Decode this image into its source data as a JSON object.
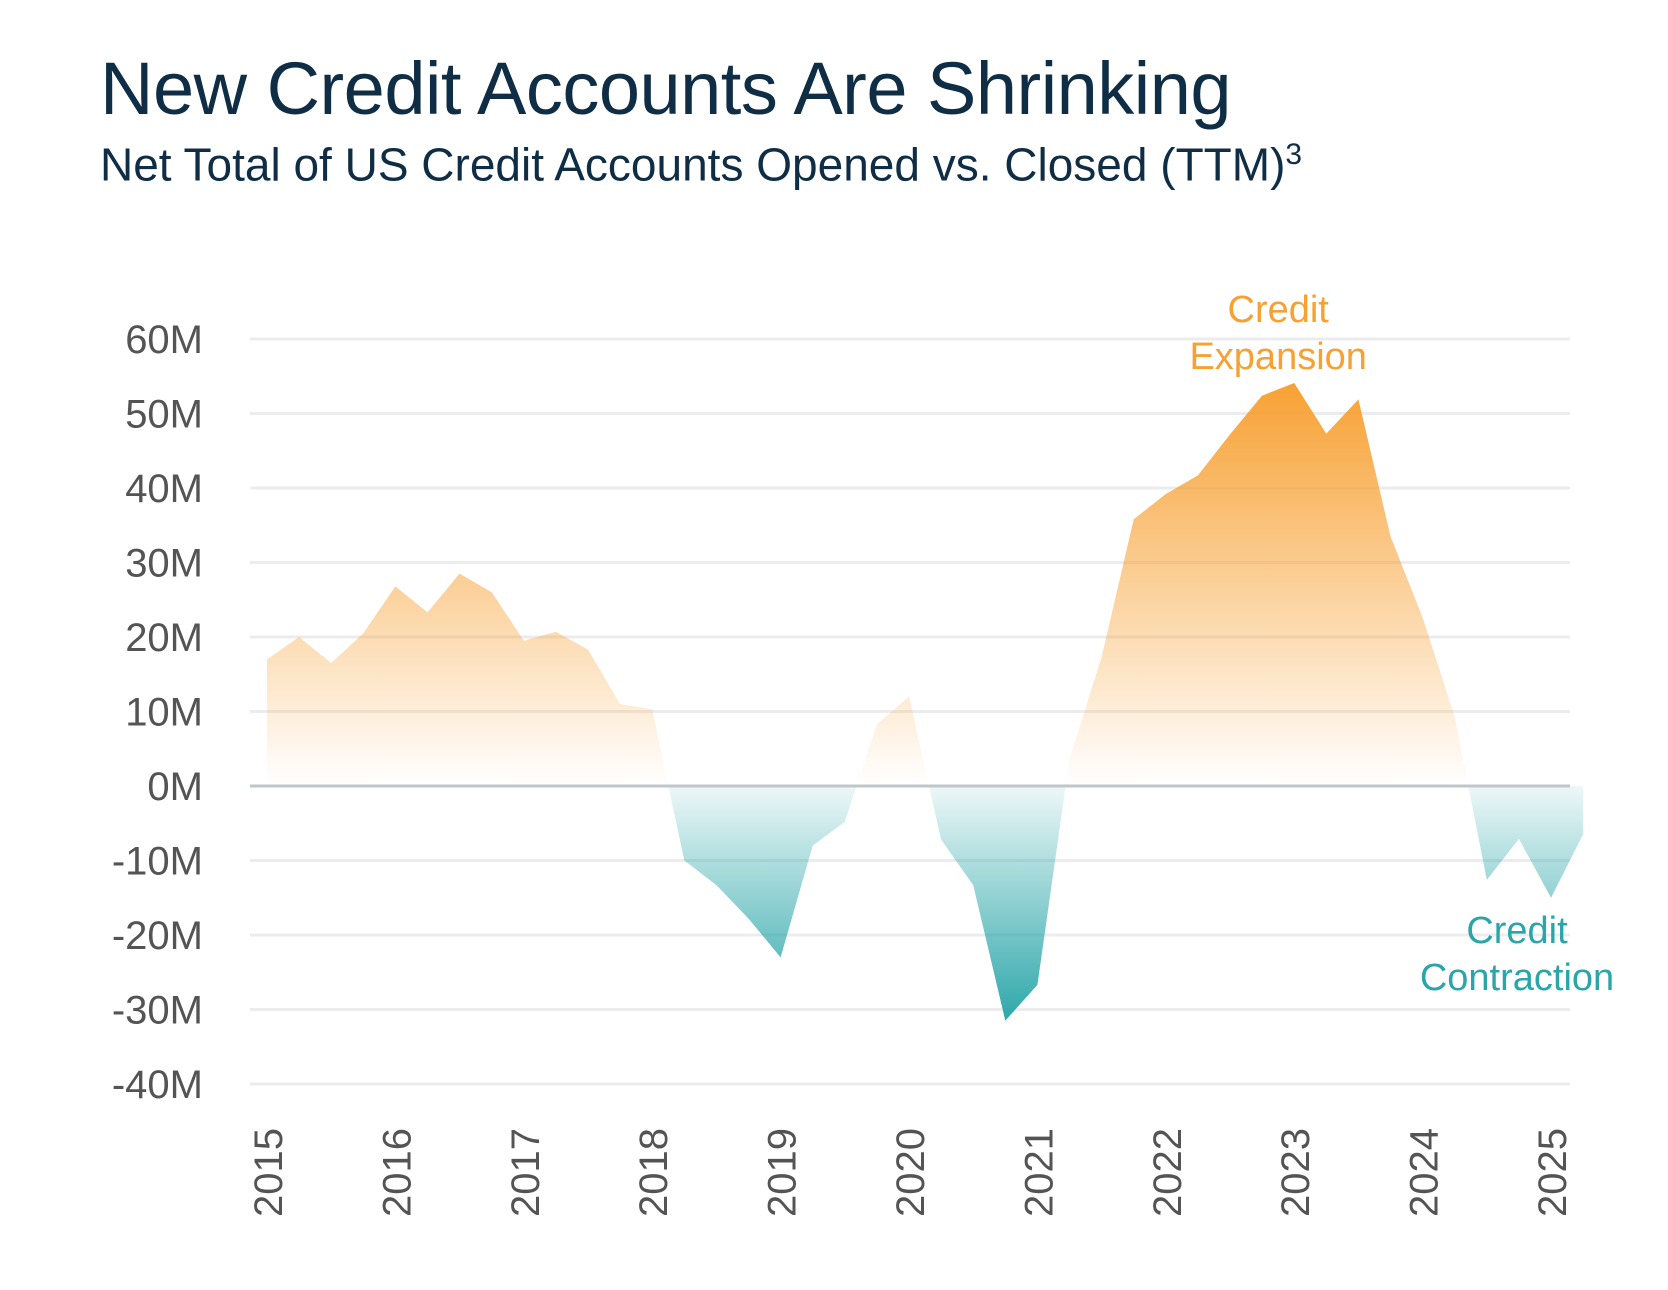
{
  "header": {
    "title": "New Credit Accounts Are Shrinking",
    "subtitle": "Net Total of US Credit Accounts Opened vs. Closed (TTM)",
    "footnote": "3"
  },
  "colors": {
    "positive": "#f7a133",
    "negative": "#2aa6a9",
    "grid": "#ececec",
    "zero_line": "#bfc7cb"
  },
  "chart_data": {
    "type": "area",
    "title": "New Credit Accounts Are Shrinking",
    "subtitle": "Net Total of US Credit Accounts Opened vs. Closed (TTM)",
    "xlabel": "",
    "ylabel": "",
    "ylim": [
      -40,
      60
    ],
    "xlim": [
      2015,
      2025.25
    ],
    "yticks": [
      60,
      50,
      40,
      30,
      20,
      10,
      0,
      -10,
      -20,
      -30,
      -40
    ],
    "ytick_labels": [
      "60M",
      "50M",
      "40M",
      "30M",
      "20M",
      "10M",
      "0M",
      "-10M",
      "-20M",
      "-30M",
      "-40M"
    ],
    "xticks": [
      "2015",
      "2016",
      "2017",
      "2018",
      "2019",
      "2020",
      "2021",
      "2022",
      "2023",
      "2024",
      "2025"
    ],
    "grid": true,
    "units": "millions of accounts",
    "series": [
      {
        "name": "Net accounts opened vs. closed (TTM)",
        "x": [
          2015.0,
          2015.25,
          2015.5,
          2015.75,
          2016.0,
          2016.25,
          2016.5,
          2016.75,
          2017.0,
          2017.25,
          2017.5,
          2017.75,
          2018.0,
          2018.25,
          2018.5,
          2018.75,
          2019.0,
          2019.25,
          2019.5,
          2019.75,
          2020.0,
          2020.25,
          2020.5,
          2020.75,
          2021.0,
          2021.25,
          2021.5,
          2021.75,
          2022.0,
          2022.25,
          2022.5,
          2022.75,
          2023.0,
          2023.25,
          2023.5,
          2023.75,
          2024.0,
          2024.25,
          2024.5,
          2024.75,
          2025.0,
          2025.25
        ],
        "values": [
          17,
          20,
          16.5,
          20.5,
          26.8,
          23.3,
          28.5,
          26,
          19.5,
          20.7,
          18.3,
          11,
          10.3,
          -10,
          -13.3,
          -17.8,
          -23,
          -8,
          -4.8,
          8.3,
          12,
          -7.2,
          -13.3,
          -31.5,
          -26.7,
          3.6,
          17.3,
          35.8,
          39.2,
          41.7,
          47.2,
          52.4,
          54.1,
          47.3,
          51.9,
          33.5,
          22.6,
          9.3,
          -12.6,
          -7.1,
          -15,
          -6.5
        ]
      }
    ],
    "annotations": [
      {
        "text": "Credit\nExpansion",
        "line1": "Credit",
        "line2": "Expansion",
        "color": "#f7a133",
        "near_x": 2023,
        "near_y": 54.1
      },
      {
        "text": "Credit\nContraction",
        "line1": "Credit",
        "line2": "Contraction",
        "color": "#2aa6a9",
        "near_x": 2025,
        "near_y": -15
      }
    ]
  }
}
